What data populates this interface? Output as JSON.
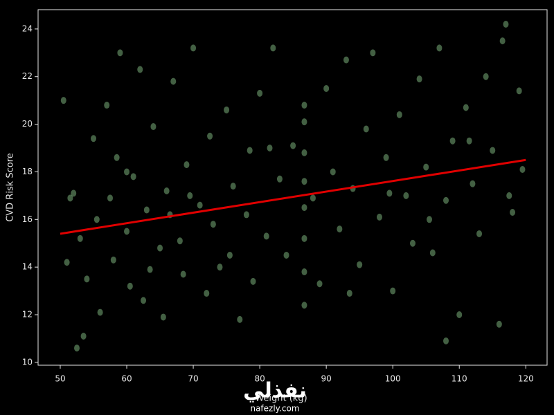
{
  "chart_data": {
    "type": "scatter",
    "xlabel": "Weight (kg)",
    "ylabel": "CVD Risk Score",
    "x": [
      50.5,
      51,
      52,
      52.5,
      53,
      54,
      55,
      55.5,
      56,
      57,
      58,
      58.5,
      59,
      60,
      60.5,
      61,
      62,
      62.5,
      63,
      64,
      65,
      65.5,
      66,
      67,
      68,
      68.5,
      69,
      70,
      71,
      72,
      72.5,
      73,
      74,
      75,
      76,
      77,
      78,
      78.5,
      79,
      80,
      81,
      82,
      83,
      84,
      85,
      86.7,
      86.7,
      86.7,
      86.7,
      86.7,
      86.7,
      86.7,
      86.7,
      88,
      89,
      90,
      91,
      92,
      93,
      94,
      95,
      96,
      97,
      98,
      99,
      100,
      101,
      102,
      103,
      104,
      105,
      106,
      107,
      108,
      109,
      110,
      111,
      112,
      113,
      114,
      115,
      116,
      117,
      118,
      119,
      119.5,
      51.5,
      57.5,
      63.5,
      69.5,
      75.5,
      81.5,
      93.5,
      99.5,
      105.5,
      111.5,
      117.5,
      116.5,
      108,
      53.5,
      60,
      66.5
    ],
    "values": [
      21.0,
      14.2,
      17.1,
      10.6,
      15.2,
      13.5,
      19.4,
      16.0,
      12.1,
      20.8,
      14.3,
      18.6,
      23.0,
      15.5,
      13.2,
      17.8,
      22.3,
      12.6,
      16.4,
      19.9,
      14.8,
      11.9,
      17.2,
      21.8,
      15.1,
      13.7,
      18.3,
      23.2,
      16.6,
      12.9,
      19.5,
      15.8,
      14.0,
      20.6,
      17.4,
      11.8,
      16.2,
      18.9,
      13.4,
      21.3,
      15.3,
      23.2,
      17.7,
      14.5,
      19.1,
      12.4,
      13.8,
      15.2,
      16.5,
      17.6,
      18.8,
      20.1,
      20.8,
      16.9,
      13.3,
      21.5,
      18.0,
      15.6,
      22.7,
      17.3,
      14.1,
      19.8,
      23.0,
      16.1,
      18.6,
      13.0,
      20.4,
      17.0,
      15.0,
      21.9,
      18.2,
      14.6,
      23.2,
      16.8,
      19.3,
      12.0,
      20.7,
      17.5,
      15.4,
      22.0,
      18.9,
      11.6,
      24.2,
      16.3,
      21.4,
      18.1,
      16.9,
      16.9,
      13.9,
      17.0,
      14.5,
      19.0,
      12.9,
      17.1,
      16.0,
      19.3,
      17.0,
      23.5,
      10.9,
      11.1,
      18.0,
      16.2
    ],
    "color": "#6fa06f",
    "fit": {
      "x": [
        50,
        120
      ],
      "values": [
        15.4,
        18.5
      ],
      "color": "#e00000"
    },
    "xlim": [
      46.67,
      123.2
    ],
    "xticks": [
      50,
      60,
      70,
      80,
      90,
      100,
      110,
      120
    ],
    "ylim": [
      9.88,
      24.81
    ],
    "yticks": [
      10,
      12,
      14,
      16,
      18,
      20,
      22,
      24
    ]
  },
  "watermark": {
    "logo": "نفذلي",
    "site": "nafezly.com"
  }
}
